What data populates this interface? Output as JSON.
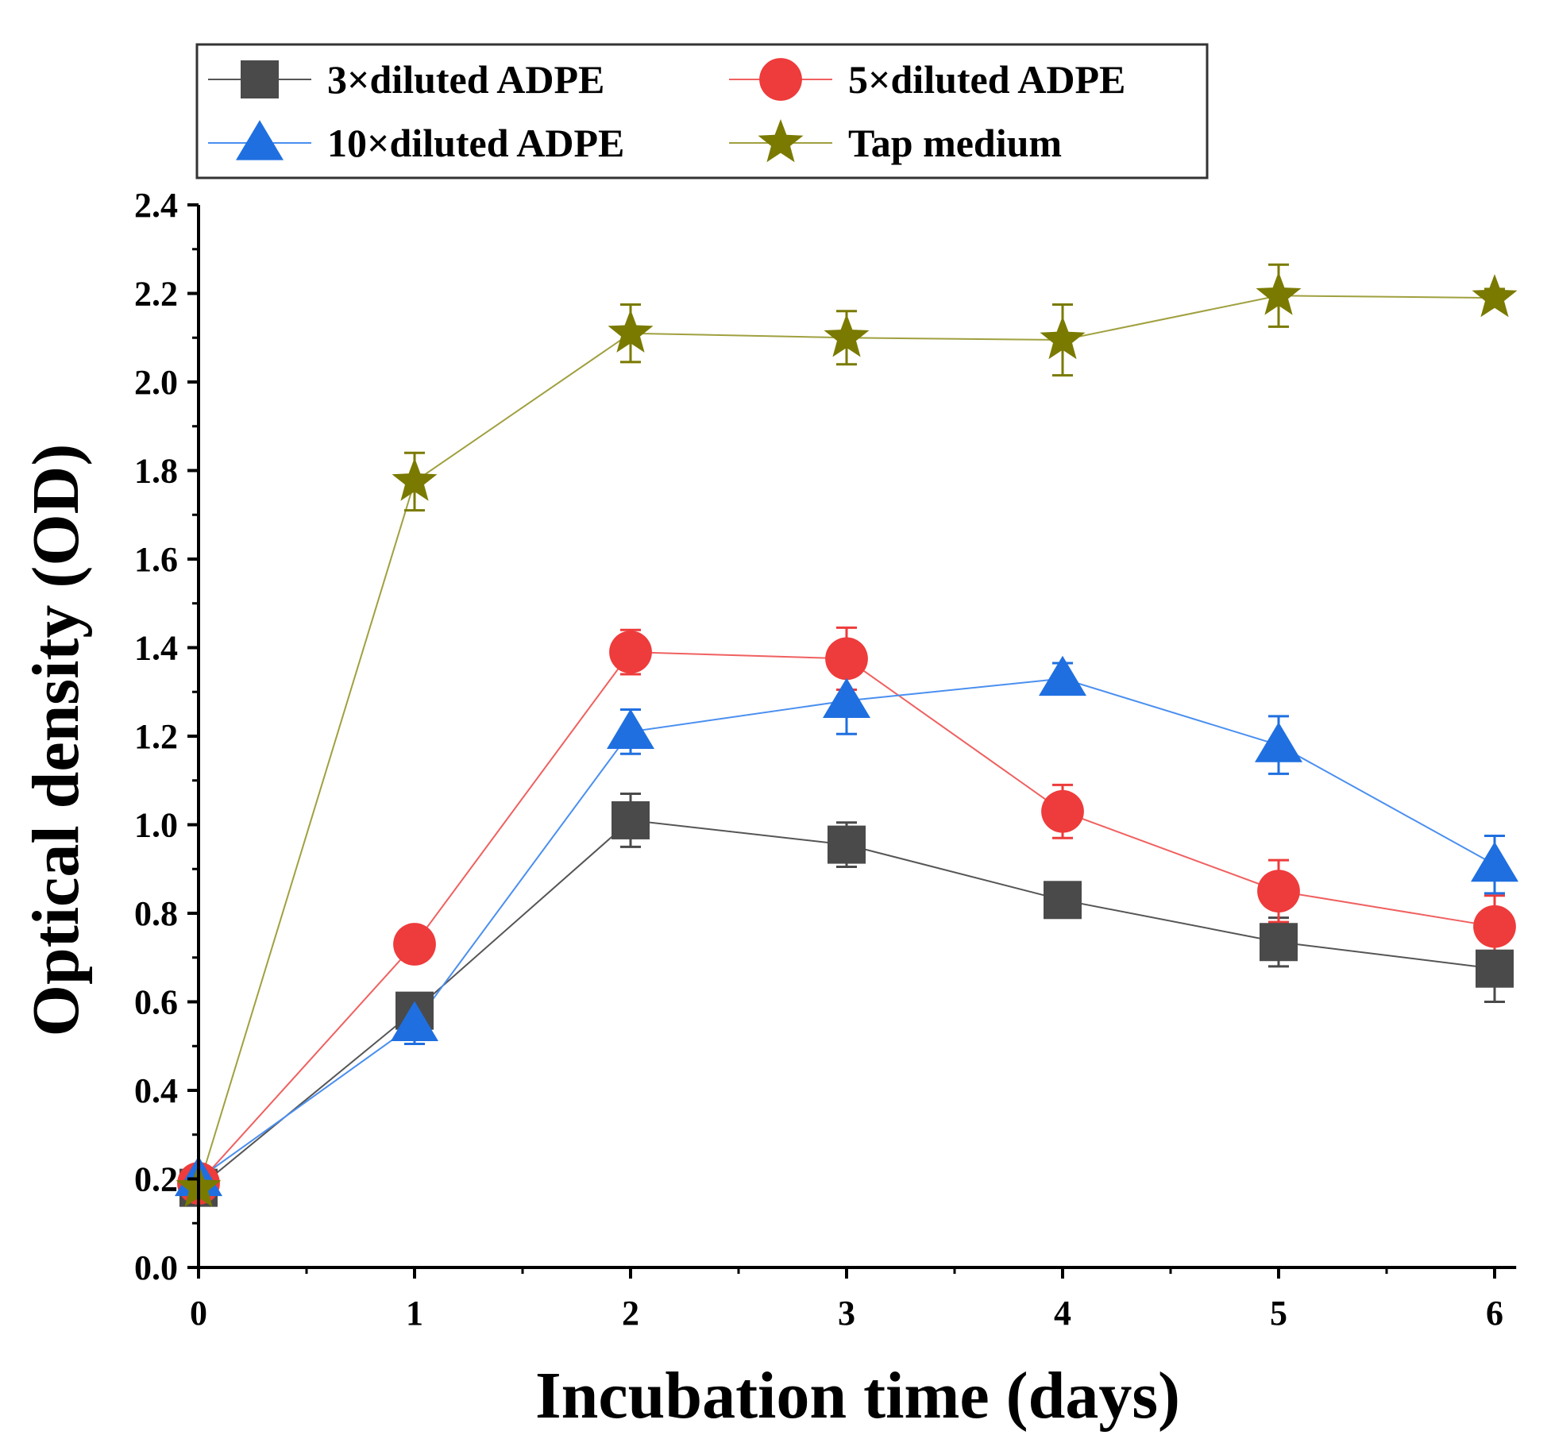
{
  "chart_data": {
    "type": "line",
    "title": "",
    "xlabel": "Incubation time (days)",
    "ylabel": "Optical density (OD)",
    "x": [
      0,
      1,
      2,
      3,
      4,
      5,
      6
    ],
    "xlim": [
      0,
      6.1
    ],
    "ylim": [
      0,
      2.4
    ],
    "xticks": [
      0,
      1,
      2,
      3,
      4,
      5,
      6
    ],
    "yticks": [
      0.0,
      0.2,
      0.4,
      0.6,
      0.8,
      1.0,
      1.2,
      1.4,
      1.6,
      1.8,
      2.0,
      2.2,
      2.4
    ],
    "ytick_labels": [
      "0.0",
      "0.2",
      "0.4",
      "0.6",
      "0.8",
      "1.0",
      "1.2",
      "1.4",
      "1.6",
      "1.8",
      "2.0",
      "2.2",
      "2.4"
    ],
    "grid": false,
    "legend_position": "top",
    "series": [
      {
        "name": "3×diluted ADPE",
        "marker": "square",
        "color": "#4a4a4a",
        "line_color": "#555555",
        "values": [
          0.18,
          0.58,
          1.01,
          0.955,
          0.83,
          0.735,
          0.675
        ],
        "errors": [
          0.02,
          0.02,
          0.06,
          0.05,
          0.02,
          0.055,
          0.075
        ]
      },
      {
        "name": "5×diluted ADPE",
        "marker": "circle",
        "color": "#ee3b3b",
        "line_color": "#f06060",
        "values": [
          0.19,
          0.73,
          1.39,
          1.375,
          1.03,
          0.85,
          0.77
        ],
        "errors": [
          0.02,
          0.02,
          0.05,
          0.07,
          0.06,
          0.07,
          0.07
        ]
      },
      {
        "name": "10×diluted ADPE",
        "marker": "triangle",
        "color": "#1f6fe0",
        "line_color": "#4a8ff0",
        "values": [
          0.2,
          0.55,
          1.21,
          1.28,
          1.33,
          1.18,
          0.91
        ],
        "errors": [
          0.02,
          0.045,
          0.05,
          0.075,
          0.035,
          0.065,
          0.065
        ]
      },
      {
        "name": "Tap medium",
        "marker": "star",
        "color": "#7a7a00",
        "line_color": "#a0a040",
        "values": [
          0.18,
          1.775,
          2.11,
          2.1,
          2.095,
          2.195,
          2.19
        ],
        "errors": [
          0.02,
          0.065,
          0.065,
          0.06,
          0.08,
          0.07,
          0.02
        ]
      }
    ]
  }
}
